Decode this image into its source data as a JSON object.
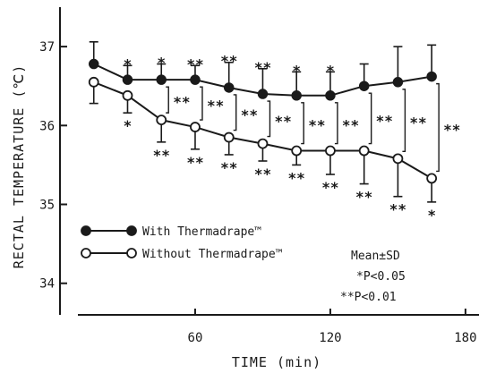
{
  "chart_data": {
    "type": "line",
    "title": "",
    "xlabel": "TIME (min)",
    "ylabel": "RECTAL TEMPERATURE (℃)",
    "xlim": [
      0,
      186
    ],
    "ylim": [
      33.6,
      37.5
    ],
    "xticks": [
      60,
      120,
      180
    ],
    "yticks": [
      34,
      35,
      36,
      37
    ],
    "x": [
      15,
      30,
      45,
      60,
      75,
      90,
      105,
      120,
      135,
      150,
      165
    ],
    "grid": false,
    "legend_position": "bottom-left",
    "series": [
      {
        "name": "With Thermadrape™",
        "marker": "filled-circle",
        "values": [
          36.78,
          36.58,
          36.58,
          36.58,
          36.48,
          36.4,
          36.38,
          36.38,
          36.5,
          36.55,
          36.62
        ],
        "sd": [
          0.28,
          0.18,
          0.2,
          0.18,
          0.32,
          0.32,
          0.3,
          0.3,
          0.28,
          0.45,
          0.4
        ]
      },
      {
        "name": "Without Thermadrape™",
        "marker": "open-circle",
        "values": [
          36.55,
          36.38,
          36.07,
          35.98,
          35.85,
          35.77,
          35.68,
          35.68,
          35.68,
          35.58,
          35.33
        ],
        "sd": [
          0.27,
          0.22,
          0.28,
          0.28,
          0.22,
          0.22,
          0.18,
          0.3,
          0.42,
          0.48,
          0.3
        ]
      }
    ],
    "significance": {
      "with_series": [
        "",
        "*",
        "*",
        "**",
        "**",
        "**",
        "*",
        "*",
        "",
        "",
        ""
      ],
      "without_series": [
        "",
        "*",
        "**",
        "**",
        "**",
        "**",
        "**",
        "**",
        "**",
        "**",
        "*"
      ],
      "between": [
        "",
        "*",
        "**",
        "**",
        "**",
        "**",
        "**",
        "**",
        "**",
        "**",
        "**"
      ]
    },
    "annotations": [
      "Mean±SD",
      "*P<0.05",
      "**P<0.01"
    ]
  },
  "colors": {
    "ink": "#1a1a1a",
    "background": "#ffffff"
  }
}
